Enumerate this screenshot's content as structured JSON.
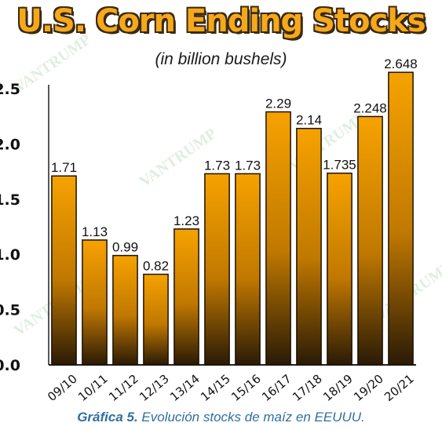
{
  "chart_data": {
    "type": "bar",
    "title": "U.S. Corn Ending Stocks",
    "subtitle": "(in billion bushels)",
    "categories": [
      "09/10",
      "10/11",
      "11/12",
      "12/13",
      "13/14",
      "14/15",
      "15/16",
      "16/17",
      "17/18",
      "18/19",
      "19/20",
      "20/21"
    ],
    "values": [
      1.71,
      1.13,
      0.99,
      0.82,
      1.23,
      1.73,
      1.73,
      2.29,
      2.14,
      1.735,
      2.248,
      2.648
    ],
    "data_labels": [
      "1.71",
      "1.13",
      "0.99",
      "0.82",
      "1.23",
      "1.73",
      "1.73",
      "2.29",
      "2.14",
      "1.735",
      "2.248",
      "2.648"
    ],
    "yticks": [
      "0.0",
      "0.5",
      "1.0",
      "1.5",
      "2.0",
      "2.5"
    ],
    "ylim": [
      0,
      2.5
    ],
    "grid": false,
    "xlabel": "",
    "ylabel": "",
    "bar_color_top": "#f6a200",
    "bar_color_bottom": "#2a1a06"
  },
  "watermark": {
    "line1": "The",
    "line2": "VANTRUMP",
    "line3": "Report"
  },
  "caption": {
    "label": "Gráfica 5.",
    "text": " Evolución stocks de maíz en EEUUU."
  }
}
